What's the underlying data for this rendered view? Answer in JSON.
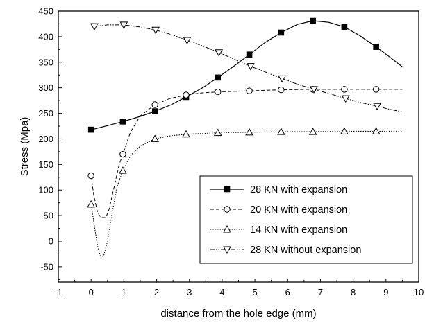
{
  "chart_data": {
    "type": "line",
    "title": "",
    "xlabel": "distance from the hole edge (mm)",
    "ylabel": "Stress (Mpa)",
    "xlim": [
      -1,
      10
    ],
    "ylim": [
      -80,
      450
    ],
    "xticks": [
      -1,
      0,
      1,
      2,
      3,
      4,
      5,
      6,
      7,
      8,
      9,
      10
    ],
    "yticks": [
      -50,
      0,
      50,
      100,
      150,
      200,
      250,
      300,
      350,
      400,
      450
    ],
    "grid": false,
    "legend_position": "bottom-right",
    "series": [
      {
        "name": "28 KN with expansion",
        "line_style": "solid",
        "marker": "filled-square",
        "points": [
          [
            0,
            218
          ],
          [
            0.97,
            234
          ],
          [
            1.95,
            254
          ],
          [
            2.9,
            282
          ],
          [
            3.87,
            320
          ],
          [
            4.83,
            365
          ],
          [
            5.8,
            408
          ],
          [
            6.77,
            431
          ],
          [
            7.73,
            419
          ],
          [
            8.7,
            380
          ]
        ],
        "curve": [
          [
            0,
            218
          ],
          [
            0.5,
            226
          ],
          [
            0.97,
            234
          ],
          [
            1.5,
            244
          ],
          [
            1.95,
            254
          ],
          [
            2.45,
            267
          ],
          [
            2.9,
            282
          ],
          [
            3.4,
            300
          ],
          [
            3.87,
            320
          ],
          [
            4.35,
            342
          ],
          [
            4.83,
            365
          ],
          [
            5.3,
            388
          ],
          [
            5.8,
            408
          ],
          [
            6.3,
            424
          ],
          [
            6.77,
            431
          ],
          [
            7.25,
            428
          ],
          [
            7.73,
            419
          ],
          [
            8.2,
            402
          ],
          [
            8.7,
            380
          ],
          [
            9.1,
            361
          ],
          [
            9.5,
            341
          ]
        ]
      },
      {
        "name": "20 KN with expansion",
        "line_style": "dashed",
        "marker": "open-circle",
        "points": [
          [
            0,
            128
          ],
          [
            0.97,
            170
          ],
          [
            1.95,
            267
          ],
          [
            2.9,
            286
          ],
          [
            3.87,
            292
          ],
          [
            4.83,
            294
          ],
          [
            5.8,
            296
          ],
          [
            6.77,
            297
          ],
          [
            7.73,
            297
          ],
          [
            8.7,
            297
          ]
        ],
        "curve": [
          [
            0,
            128
          ],
          [
            0.08,
            90
          ],
          [
            0.2,
            56
          ],
          [
            0.3,
            46
          ],
          [
            0.45,
            46
          ],
          [
            0.55,
            62
          ],
          [
            0.7,
            105
          ],
          [
            0.85,
            148
          ],
          [
            0.97,
            170
          ],
          [
            1.2,
            213
          ],
          [
            1.5,
            245
          ],
          [
            1.95,
            267
          ],
          [
            2.4,
            279
          ],
          [
            2.9,
            286
          ],
          [
            3.4,
            290
          ],
          [
            3.87,
            292
          ],
          [
            4.83,
            294
          ],
          [
            5.8,
            296
          ],
          [
            6.77,
            297
          ],
          [
            7.73,
            297
          ],
          [
            8.7,
            297
          ],
          [
            9.5,
            297
          ]
        ]
      },
      {
        "name": "14 KN with expansion",
        "line_style": "dotted",
        "marker": "open-triangle-up",
        "points": [
          [
            0,
            72
          ],
          [
            0.97,
            138
          ],
          [
            1.95,
            200
          ],
          [
            2.9,
            209
          ],
          [
            3.87,
            212
          ],
          [
            4.83,
            213
          ],
          [
            5.8,
            214
          ],
          [
            6.77,
            214
          ],
          [
            7.73,
            215
          ],
          [
            8.7,
            215
          ]
        ],
        "curve": [
          [
            0,
            72
          ],
          [
            0.1,
            30
          ],
          [
            0.2,
            -10
          ],
          [
            0.3,
            -33
          ],
          [
            0.38,
            -30
          ],
          [
            0.5,
            0
          ],
          [
            0.65,
            58
          ],
          [
            0.8,
            108
          ],
          [
            0.97,
            138
          ],
          [
            1.2,
            167
          ],
          [
            1.5,
            186
          ],
          [
            1.95,
            200
          ],
          [
            2.4,
            206
          ],
          [
            2.9,
            209
          ],
          [
            3.87,
            212
          ],
          [
            4.83,
            213
          ],
          [
            5.8,
            214
          ],
          [
            6.77,
            214
          ],
          [
            7.73,
            215
          ],
          [
            8.7,
            215
          ],
          [
            9.5,
            215
          ]
        ]
      },
      {
        "name": "28 KN without expansion",
        "line_style": "dash-dot-dot",
        "marker": "open-triangle-down",
        "points": [
          [
            0.1,
            420
          ],
          [
            1.0,
            423
          ],
          [
            1.97,
            413
          ],
          [
            2.93,
            393
          ],
          [
            3.9,
            369
          ],
          [
            4.87,
            342
          ],
          [
            5.83,
            318
          ],
          [
            6.8,
            297
          ],
          [
            7.77,
            279
          ],
          [
            8.73,
            264
          ]
        ],
        "curve": [
          [
            0.1,
            420
          ],
          [
            0.5,
            423
          ],
          [
            1.0,
            423
          ],
          [
            1.5,
            419
          ],
          [
            1.97,
            413
          ],
          [
            2.45,
            404
          ],
          [
            2.93,
            393
          ],
          [
            3.4,
            382
          ],
          [
            3.9,
            369
          ],
          [
            4.4,
            355
          ],
          [
            4.87,
            342
          ],
          [
            5.35,
            330
          ],
          [
            5.83,
            318
          ],
          [
            6.3,
            307
          ],
          [
            6.8,
            297
          ],
          [
            7.3,
            288
          ],
          [
            7.77,
            279
          ],
          [
            8.25,
            271
          ],
          [
            8.73,
            264
          ],
          [
            9.1,
            258
          ],
          [
            9.5,
            253
          ]
        ]
      }
    ]
  }
}
